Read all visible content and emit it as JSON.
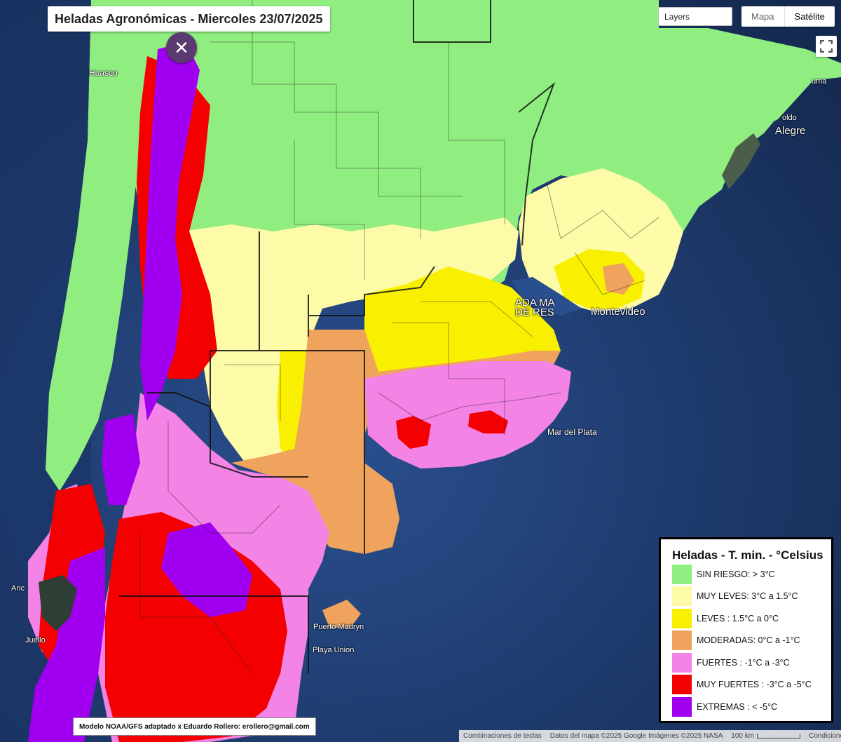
{
  "title": "Heladas Agronómicas - Miercoles 23/07/2025",
  "controls": {
    "close_label": "✕",
    "layers_label": "Layers",
    "map_type": [
      "Mapa",
      "Satélite"
    ],
    "map_type_selected": "Satélite"
  },
  "places": {
    "huasco": "Huasco",
    "alegre": "Alegre",
    "oldo": "oldo",
    "uma": "uma",
    "buenos_aires": "ADA MA DE RES",
    "montevideo": "Montevideo",
    "mar_del_plata": "Mar del Plata",
    "puerto_madryn": "Puerto Madryn",
    "playa_union": "Playa Union",
    "ancud": "Anc",
    "quellon": "Juello"
  },
  "legend": {
    "title": "Heladas - T. min. - °Celsius",
    "items": [
      {
        "label": "SIN RIESGO: > 3°C",
        "color": "#90ee80"
      },
      {
        "label": "MUY LEVES: 3°C a 1.5°C",
        "color": "#fdfaa8"
      },
      {
        "label": "LEVES : 1.5°C a 0°C",
        "color": "#f8f000"
      },
      {
        "label": "MODERADAS: 0°C a -1°C",
        "color": "#f0a35c"
      },
      {
        "label": "FUERTES : -1°C a -3°C",
        "color": "#f483e6"
      },
      {
        "label": "MUY FUERTES : -3°C a -5°C",
        "color": "#f40000"
      },
      {
        "label": "EXTREMAS : < -5°C",
        "color": "#a100f0"
      }
    ]
  },
  "credit": "Modelo NOAA/GFS adaptado x Eduardo Rollero: erollero@gmail.com",
  "attribution": {
    "shortcuts": "Combinaciones de teclas",
    "data": "Datos del mapa ©2025 Google Imágenes ©2025 NASA",
    "scale": "100 km",
    "terms": "Condiciones"
  },
  "colors": {
    "ocean": "#1f3c73",
    "sin_riesgo": "#90ee80",
    "muy_leves": "#fdfaa8",
    "leves": "#f8f000",
    "moderadas": "#f0a35c",
    "fuertes": "#f483e6",
    "muy_fuertes": "#f40000",
    "extremas": "#a100f0"
  }
}
